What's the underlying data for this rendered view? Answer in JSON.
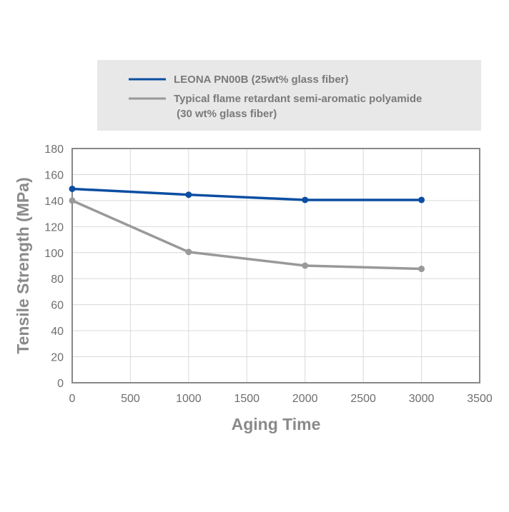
{
  "chart_data": {
    "type": "line",
    "xlabel": "Aging Time",
    "ylabel": "Tensile Strength (MPa)",
    "xlim": [
      0,
      3500
    ],
    "ylim": [
      0,
      180
    ],
    "xticks": [
      0,
      500,
      1000,
      1500,
      2000,
      2500,
      3000,
      3500
    ],
    "yticks": [
      0,
      20,
      40,
      60,
      80,
      100,
      120,
      140,
      160,
      180
    ],
    "grid": true,
    "legend_position": "top",
    "series": [
      {
        "name": "LEONA PN00B (25wt% glass fiber)",
        "color": "#0b4ea2",
        "x": [
          0,
          1000,
          2000,
          3000
        ],
        "y": [
          149,
          144.5,
          140.5,
          140.5
        ]
      },
      {
        "name": "Typical flame retardant semi-aromatic polyamide",
        "name_line2": " (30 wt% glass fiber)",
        "color": "#999999",
        "x": [
          0,
          1000,
          2000,
          3000
        ],
        "y": [
          140,
          100.5,
          90,
          87.5
        ]
      }
    ]
  }
}
